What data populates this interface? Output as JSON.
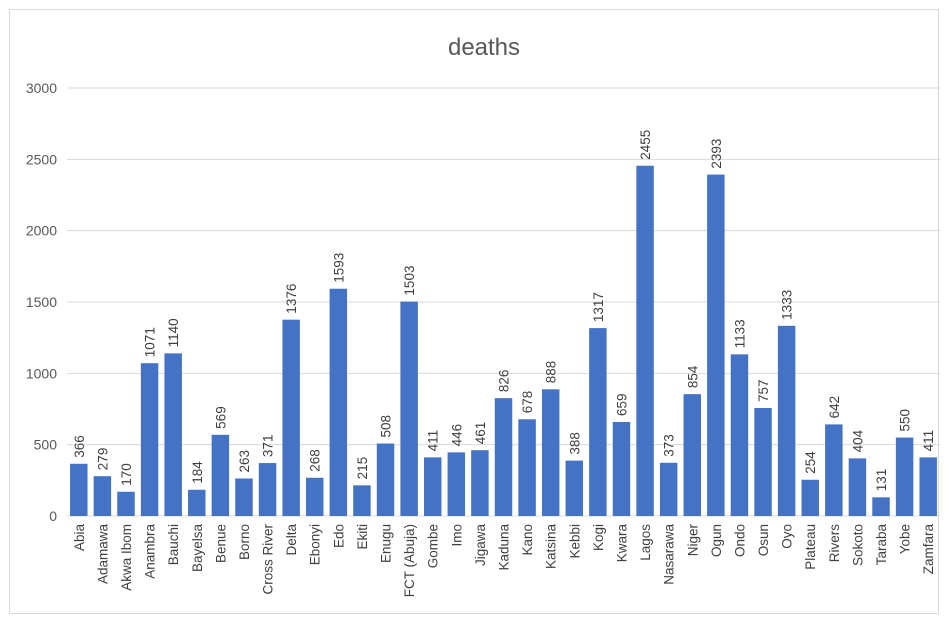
{
  "chart_data": {
    "type": "bar",
    "title": "deaths",
    "xlabel": "",
    "ylabel": "",
    "ylim": [
      0,
      3000
    ],
    "yticks": [
      0,
      500,
      1000,
      1500,
      2000,
      2500,
      3000
    ],
    "grid": true,
    "legend": "none",
    "bar_color": "#4472c4",
    "categories": [
      "Abia",
      "Adamawa",
      "Akwa Ibom",
      "Anambra",
      "Bauchi",
      "Bayelsa",
      "Benue",
      "Borno",
      "Cross River",
      "Delta",
      "Ebonyi",
      "Edo",
      "Ekiti",
      "Enugu",
      "FCT (Abuja)",
      "Gombe",
      "Imo",
      "Jigawa",
      "Kaduna",
      "Kano",
      "Katsina",
      "Kebbi",
      "Kogi",
      "Kwara",
      "Lagos",
      "Nasarawa",
      "Niger",
      "Ogun",
      "Ondo",
      "Osun",
      "Oyo",
      "Plateau",
      "Rivers",
      "Sokoto",
      "Taraba",
      "Yobe",
      "Zamfara"
    ],
    "values": [
      366,
      279,
      170,
      1071,
      1140,
      184,
      569,
      263,
      371,
      1376,
      268,
      1593,
      215,
      508,
      1503,
      411,
      446,
      461,
      826,
      678,
      888,
      388,
      1317,
      659,
      2455,
      373,
      854,
      2393,
      1133,
      757,
      1333,
      254,
      642,
      404,
      131,
      550,
      411
    ]
  }
}
